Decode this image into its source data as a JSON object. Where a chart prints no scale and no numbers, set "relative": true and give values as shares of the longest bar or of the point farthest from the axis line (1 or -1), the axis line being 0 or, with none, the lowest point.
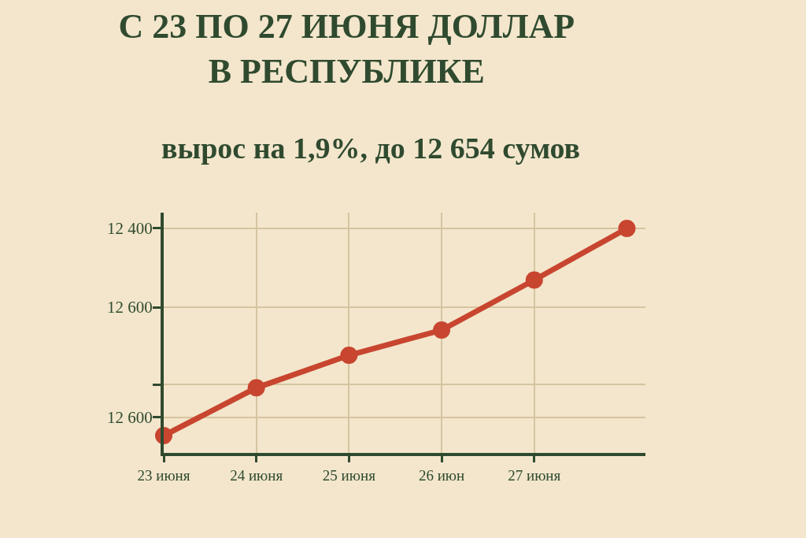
{
  "chart_data": {
    "type": "line",
    "title": "С 23 ПО 27 ИЮНЯ ДОЛЛАР\nВ РЕСПУБЛИКЕ",
    "subtitle": "вырос на 1,9%, до 12 654 сумов",
    "categories": [
      "23 июня",
      "24 июня",
      "25 июня",
      "26 июн",
      "27 июня",
      null
    ],
    "series": [
      {
        "color": "#c8452f",
        "values": [
          0.077,
          0.29,
          0.435,
          0.547,
          0.77,
          1
        ]
      }
    ],
    "relative": true,
    "annotations": [
      "12 400",
      "12 600",
      "12 600"
    ],
    "grid": true,
    "marker": "circle",
    "line_style": "solid"
  }
}
